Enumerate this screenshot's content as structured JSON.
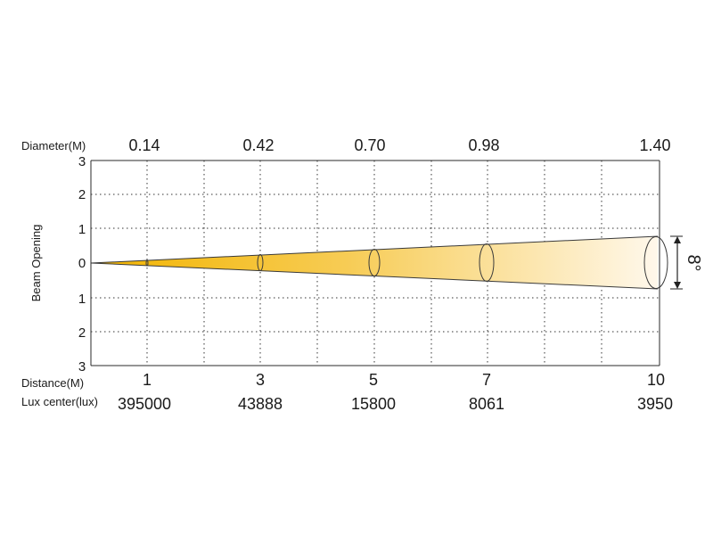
{
  "diagram": {
    "diameter_label": "Diameter(M)",
    "distance_label": "Distance(M)",
    "lux_label": "Lux center(lux)",
    "y_axis_label": "Beam Opening",
    "angle_label": "8°",
    "y_ticks": [
      "3",
      "2",
      "1",
      "0",
      "1",
      "2",
      "3"
    ],
    "diameters": [
      "0.14",
      "0.42",
      "0.70",
      "0.98",
      "1.40"
    ],
    "distances": [
      "1",
      "3",
      "5",
      "7",
      "10"
    ],
    "lux_values": [
      "395000",
      "43888",
      "15800",
      "8061",
      "3950"
    ],
    "beam_color_start": "#f2b400",
    "beam_color_end": "#fff8ec"
  }
}
